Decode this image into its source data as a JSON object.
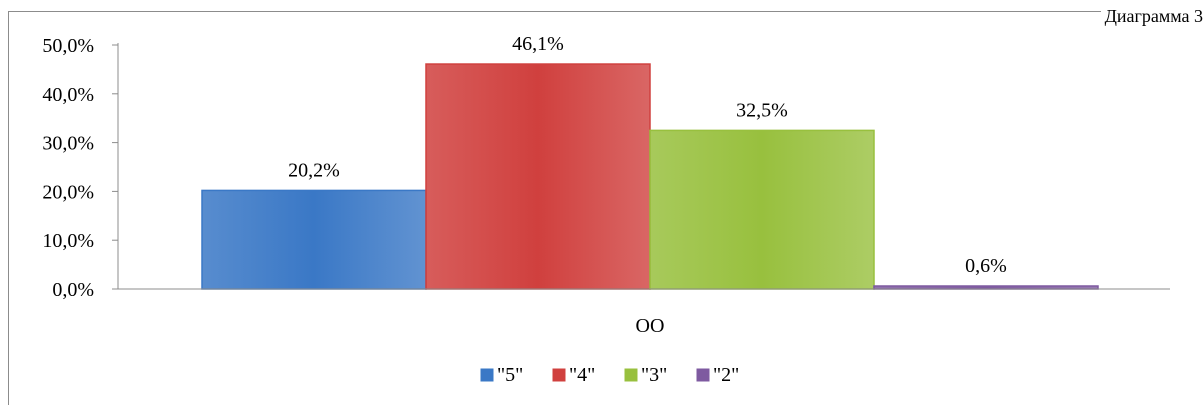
{
  "caption": "Диаграмма 3",
  "chart_data": {
    "type": "bar",
    "categories": [
      "ОО"
    ],
    "series": [
      {
        "name": "\"5\"",
        "values": [
          20.2
        ],
        "label": "20,2%",
        "color": "#3a78c6"
      },
      {
        "name": "\"4\"",
        "values": [
          46.1
        ],
        "label": "46,1%",
        "color": "#d0403e"
      },
      {
        "name": "\"3\"",
        "values": [
          32.5
        ],
        "label": "32,5%",
        "color": "#98c03e"
      },
      {
        "name": "\"2\"",
        "values": [
          0.6
        ],
        "label": "0,6%",
        "color": "#7e5aa0"
      }
    ],
    "ylim": [
      0,
      50
    ],
    "yticks": [
      0,
      10,
      20,
      30,
      40,
      50
    ],
    "ytick_labels": [
      "0,0%",
      "10,0%",
      "20,0%",
      "30,0%",
      "40,0%",
      "50,0%"
    ],
    "legend_position": "bottom",
    "grid": false
  }
}
